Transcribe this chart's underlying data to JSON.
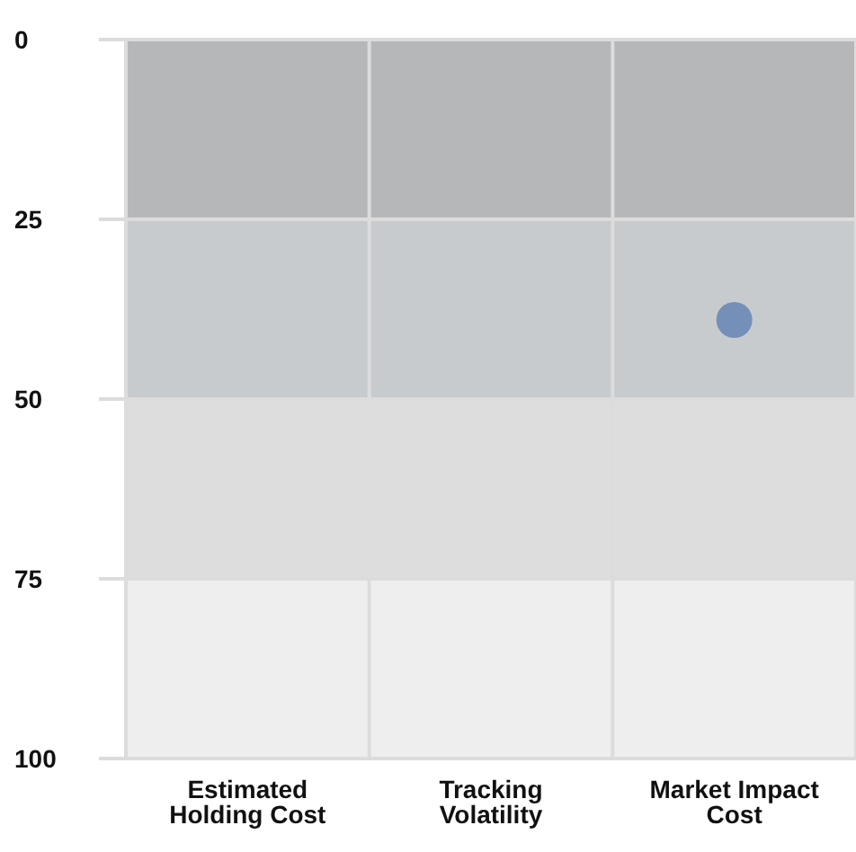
{
  "chart_data": {
    "type": "scatter",
    "categories": [
      "Estimated Holding Cost",
      "Tracking Volatility",
      "Market Impact Cost"
    ],
    "values": [
      null,
      null,
      39
    ],
    "color": "#7590b8",
    "ylim": [
      100,
      0
    ],
    "yticks": [
      0,
      25,
      50,
      75,
      100
    ],
    "grid": true,
    "marker": "circle",
    "bands": [
      {
        "axis": "y",
        "from": 0,
        "to": 25,
        "color": "#b6b7b9"
      },
      {
        "axis": "y",
        "from": 25,
        "to": 50,
        "color": "#c8cbce"
      },
      {
        "axis": "y",
        "from": 50,
        "to": 75,
        "color": "#dddddd"
      },
      {
        "axis": "y",
        "from": 75,
        "to": 100,
        "color": "#eeeeee"
      }
    ]
  }
}
